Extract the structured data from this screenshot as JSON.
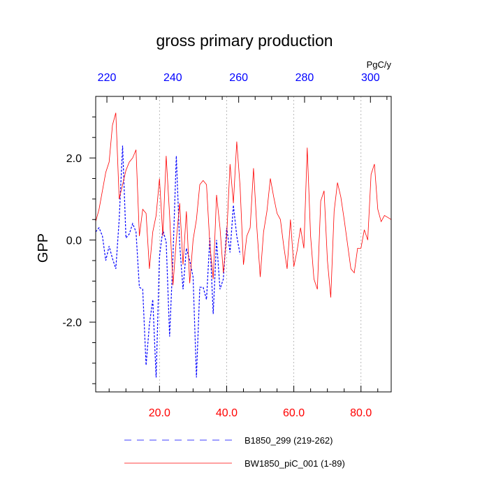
{
  "chart_data": {
    "type": "line",
    "title": "gross primary production",
    "ylabel": "GPP",
    "top_axis_unit": "PgC/y",
    "xlim_bottom": [
      1,
      89
    ],
    "xlim_top": [
      216.6,
      306.3
    ],
    "ylim": [
      -3.7,
      3.5
    ],
    "bottom_ticks": [
      {
        "value": 20,
        "label": "20.0"
      },
      {
        "value": 40,
        "label": "40.0"
      },
      {
        "value": 60,
        "label": "60.0"
      },
      {
        "value": 80,
        "label": "80.0"
      }
    ],
    "top_ticks": [
      {
        "value": 220,
        "label": "220"
      },
      {
        "value": 240,
        "label": "240"
      },
      {
        "value": 260,
        "label": "260"
      },
      {
        "value": 280,
        "label": "280"
      },
      {
        "value": 300,
        "label": "300"
      }
    ],
    "left_ticks": [
      {
        "value": 2,
        "label": "2.0"
      },
      {
        "value": 0,
        "label": "0.0"
      },
      {
        "value": -2,
        "label": "-2.0"
      }
    ],
    "grid": "vertical dotted lines at bottom-axis major ticks",
    "legend_position": "bottom",
    "series": [
      {
        "name": "B1850_299 (219-262)",
        "color": "#0000ff",
        "style": "dashed",
        "x": [
          1,
          2,
          3,
          4,
          5,
          6,
          7,
          8,
          9,
          10,
          11,
          12,
          13,
          14,
          15,
          16,
          17,
          18,
          19,
          20,
          21,
          22,
          23,
          24,
          25,
          26,
          27,
          28,
          29,
          30,
          31,
          32,
          33,
          34,
          35,
          36,
          37,
          38,
          39,
          40,
          41,
          42,
          43,
          44
        ],
        "values": [
          0.2,
          0.3,
          0.1,
          -0.5,
          -0.15,
          -0.45,
          -0.7,
          0.5,
          2.3,
          0.05,
          0.15,
          0.4,
          0.2,
          -1.15,
          -1.2,
          -3.05,
          -2.05,
          -1.45,
          -3.35,
          -0.4,
          0.25,
          -0.05,
          -2.35,
          -0.4,
          2.05,
          -0.1,
          -1.2,
          -0.2,
          -0.5,
          -0.9,
          -3.35,
          -1.15,
          -1.15,
          -1.45,
          0.05,
          -1.8,
          0.0,
          -1.2,
          -0.95,
          0.3,
          -0.3,
          0.85,
          0.1,
          -0.35
        ]
      },
      {
        "name": "BW1850_piC_001 (1-89)",
        "color": "#ff0000",
        "style": "solid",
        "x": [
          1,
          2,
          3,
          4,
          5,
          6,
          7,
          8,
          9,
          10,
          11,
          12,
          13,
          14,
          15,
          16,
          17,
          18,
          19,
          20,
          21,
          22,
          23,
          24,
          25,
          26,
          27,
          28,
          29,
          30,
          31,
          32,
          33,
          34,
          35,
          36,
          37,
          38,
          39,
          40,
          41,
          42,
          43,
          44,
          45,
          46,
          47,
          48,
          49,
          50,
          51,
          52,
          53,
          54,
          55,
          56,
          57,
          58,
          59,
          60,
          61,
          62,
          63,
          64,
          65,
          66,
          67,
          68,
          69,
          70,
          71,
          72,
          73,
          74,
          75,
          76,
          77,
          78,
          79,
          80,
          81,
          82,
          83,
          84,
          85,
          86,
          87,
          88,
          89
        ],
        "values": [
          0.45,
          0.75,
          1.2,
          1.65,
          1.9,
          2.8,
          3.1,
          1.0,
          1.35,
          1.7,
          1.9,
          2.0,
          2.2,
          0.1,
          0.75,
          0.65,
          -0.7,
          0.2,
          0.6,
          1.5,
          0.1,
          2.05,
          0.6,
          -1.1,
          0.0,
          0.9,
          -0.6,
          0.7,
          -1.05,
          0.0,
          0.5,
          1.35,
          1.45,
          1.35,
          -0.1,
          -0.95,
          1.1,
          0.3,
          -0.8,
          0.1,
          1.85,
          0.9,
          2.4,
          1.3,
          -0.6,
          0.1,
          0.3,
          1.75,
          0.3,
          -0.9,
          0.2,
          0.7,
          1.5,
          1.05,
          0.65,
          0.5,
          -0.15,
          -0.7,
          0.5,
          -0.65,
          -0.25,
          0.3,
          -0.2,
          2.25,
          0.1,
          -0.95,
          -1.2,
          0.95,
          1.2,
          -0.5,
          -1.4,
          0.7,
          1.4,
          1.05,
          0.5,
          -0.1,
          -0.7,
          -0.8,
          -0.2,
          -0.2,
          0.25,
          0.0,
          1.6,
          1.85,
          0.75,
          0.45,
          0.6,
          0.55,
          0.5
        ]
      }
    ]
  }
}
